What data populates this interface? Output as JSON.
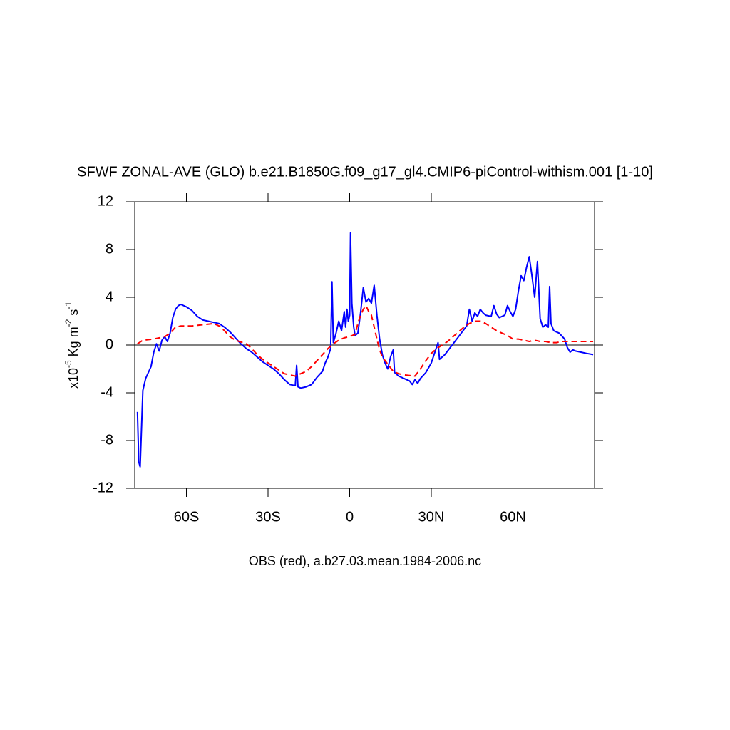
{
  "chart_data": {
    "type": "line",
    "title": "SFWF ZONAL-AVE (GLO) b.e21.B1850G.f09_g17_gl4.CMIP6-piControl-withism.001 [1-10]",
    "xlabel": "OBS (red), a.b27.03.mean.1984-2006.nc",
    "ylabel": [
      "x10",
      "-5",
      " Kg m",
      "-2",
      " s",
      "-1"
    ],
    "xlim": [
      -79,
      90
    ],
    "ylim": [
      -12,
      12
    ],
    "xticks": [
      {
        "value": -60,
        "label": "60S"
      },
      {
        "value": -30,
        "label": "30S"
      },
      0,
      {
        "value": 30,
        "label": "30N"
      },
      {
        "value": 60,
        "label": "60N"
      }
    ],
    "yticks": [
      -12,
      -8,
      -4,
      0,
      4,
      8,
      12
    ],
    "zero_line": true,
    "series": [
      {
        "color": "#0000ff",
        "dash": "none",
        "x": [
          -78,
          -77.5,
          -77,
          -76,
          -75,
          -74,
          -73,
          -72,
          -71,
          -70,
          -69,
          -68,
          -67,
          -66,
          -65,
          -64,
          -63,
          -62,
          -60,
          -58,
          -56,
          -54,
          -52,
          -50,
          -48,
          -46,
          -44,
          -42,
          -40,
          -38,
          -36,
          -34,
          -32,
          -30,
          -28,
          -26,
          -24,
          -22,
          -20,
          -19.5,
          -19,
          -18,
          -16,
          -14,
          -12,
          -10,
          -9,
          -8,
          -7,
          -6.5,
          -6,
          -5,
          -4,
          -3,
          -2,
          -1.5,
          -1,
          -0.5,
          0,
          0.3,
          0.8,
          1.5,
          2,
          3,
          4,
          5,
          6,
          7,
          8,
          9,
          10,
          11,
          12,
          13,
          14,
          15,
          16,
          16.5,
          18,
          20,
          22,
          23,
          24,
          25,
          26,
          28,
          30,
          32.5,
          33,
          35,
          37,
          39,
          41,
          43,
          44,
          45,
          46,
          47,
          48,
          49,
          50,
          52,
          53,
          54,
          55,
          57,
          58,
          59,
          60,
          61,
          62,
          63,
          64,
          65,
          66,
          67,
          68,
          69,
          70,
          71,
          72,
          73,
          73.5,
          74,
          75,
          77,
          79,
          80,
          81,
          82,
          83,
          85,
          87,
          89.5
        ],
        "values": [
          -5.6,
          -9.8,
          -10.2,
          -3.8,
          -2.8,
          -2.3,
          -1.8,
          -0.6,
          0.1,
          -0.5,
          0.4,
          0.7,
          0.3,
          1.0,
          2.3,
          3.0,
          3.3,
          3.4,
          3.2,
          2.9,
          2.4,
          2.1,
          2.0,
          1.9,
          1.8,
          1.5,
          1.1,
          0.6,
          0.1,
          -0.3,
          -0.6,
          -1.0,
          -1.4,
          -1.7,
          -2.0,
          -2.4,
          -2.9,
          -3.3,
          -3.4,
          -1.7,
          -3.5,
          -3.6,
          -3.5,
          -3.3,
          -2.7,
          -2.2,
          -1.5,
          -1.0,
          -0.3,
          5.3,
          0.2,
          1.0,
          2.0,
          1.2,
          2.8,
          1.5,
          3.0,
          2.0,
          2.5,
          9.4,
          3.5,
          1.5,
          0.8,
          1.0,
          2.7,
          4.8,
          3.6,
          3.9,
          3.5,
          5.0,
          2.5,
          0.5,
          -0.8,
          -1.5,
          -2.0,
          -1.0,
          -0.4,
          -2.3,
          -2.6,
          -2.8,
          -3.0,
          -3.3,
          -2.9,
          -3.2,
          -2.8,
          -2.3,
          -1.5,
          0.2,
          -1.2,
          -0.8,
          -0.2,
          0.4,
          1.0,
          1.6,
          3.0,
          2.0,
          2.7,
          2.4,
          3.0,
          2.7,
          2.5,
          2.4,
          3.3,
          2.6,
          2.3,
          2.5,
          3.3,
          2.8,
          2.4,
          3.0,
          4.5,
          5.8,
          5.4,
          6.5,
          7.4,
          5.8,
          4.0,
          7.0,
          2.2,
          1.5,
          1.7,
          1.5,
          4.9,
          1.8,
          1.2,
          1.0,
          0.5,
          -0.2,
          -0.6,
          -0.4,
          -0.5,
          -0.6,
          -0.7,
          -0.8
        ]
      },
      {
        "color": "#ff0000",
        "dash": "8 5",
        "x": [
          -78,
          -76,
          -72,
          -68,
          -66,
          -64,
          -62,
          -58,
          -54,
          -50,
          -48,
          -46,
          -44,
          -42,
          -38,
          -36,
          -34,
          -32,
          -30,
          -28,
          -26,
          -24,
          -22,
          -20,
          -18,
          -16,
          -14,
          -12,
          -10,
          -8,
          -6,
          -4,
          -2,
          0,
          2,
          3,
          4,
          5,
          6,
          7,
          8,
          9,
          10,
          11,
          12,
          14,
          16,
          18,
          20,
          24,
          26,
          28,
          30,
          32,
          34,
          36,
          38,
          40,
          42,
          44,
          46,
          48,
          50,
          52,
          54,
          56,
          58,
          60,
          62,
          64,
          66,
          68,
          70,
          72,
          74,
          76,
          78,
          80,
          84,
          89.5
        ],
        "values": [
          0.1,
          0.4,
          0.5,
          0.7,
          1.0,
          1.5,
          1.6,
          1.6,
          1.7,
          1.8,
          1.6,
          1.2,
          0.7,
          0.4,
          0.1,
          -0.3,
          -0.8,
          -1.2,
          -1.5,
          -1.8,
          -2.1,
          -2.4,
          -2.5,
          -2.6,
          -2.4,
          -2.2,
          -1.8,
          -1.3,
          -0.8,
          -0.3,
          0.1,
          0.4,
          0.6,
          0.7,
          0.9,
          1.8,
          2.5,
          3.0,
          3.3,
          2.8,
          2.5,
          1.5,
          0.5,
          -0.4,
          -1.0,
          -1.6,
          -2.2,
          -2.4,
          -2.5,
          -2.6,
          -2.0,
          -1.3,
          -0.7,
          -0.3,
          0.0,
          0.3,
          0.7,
          1.1,
          1.5,
          1.8,
          2.0,
          2.0,
          1.8,
          1.5,
          1.2,
          1.0,
          0.8,
          0.5,
          0.5,
          0.4,
          0.3,
          0.4,
          0.3,
          0.3,
          0.2,
          0.2,
          0.3,
          0.3,
          0.3,
          0.3
        ]
      }
    ]
  }
}
